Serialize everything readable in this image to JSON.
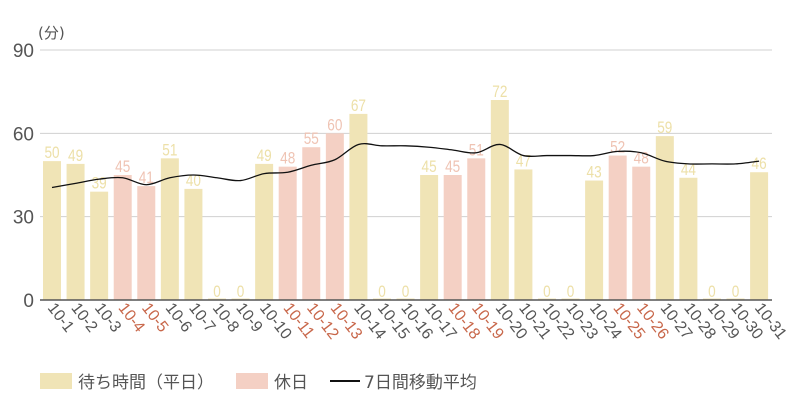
{
  "chart_data": {
    "type": "bar",
    "title": "",
    "ylabel": "(分)",
    "xlabel": "",
    "ylim": [
      0,
      90
    ],
    "yticks": [
      0,
      30,
      60,
      90
    ],
    "grid": true,
    "legend_position": "bottom",
    "categories": [
      "10-1",
      "10-2",
      "10-3",
      "10-4",
      "10-5",
      "10-6",
      "10-7",
      "10-8",
      "10-9",
      "10-10",
      "10-11",
      "10-12",
      "10-13",
      "10-14",
      "10-15",
      "10-16",
      "10-17",
      "10-18",
      "10-19",
      "10-20",
      "10-21",
      "10-22",
      "10-23",
      "10-24",
      "10-25",
      "10-26",
      "10-27",
      "10-28",
      "10-29",
      "10-30",
      "10-31"
    ],
    "holidays": [
      "10-4",
      "10-5",
      "10-11",
      "10-12",
      "10-13",
      "10-18",
      "10-19",
      "10-25",
      "10-26"
    ],
    "values": [
      50,
      49,
      39,
      45,
      41,
      51,
      40,
      0,
      0,
      49,
      48,
      55,
      60,
      67,
      0,
      0,
      45,
      45,
      51,
      72,
      47,
      0,
      0,
      43,
      52,
      48,
      59,
      44,
      0,
      0,
      46
    ],
    "series": [
      {
        "name": "待ち時間（平日）",
        "type": "bar",
        "color": "#f0e4b6"
      },
      {
        "name": "休日",
        "type": "bar",
        "color": "#f4d0c4"
      },
      {
        "name": "7日間移動平均",
        "type": "line",
        "color": "#111111",
        "values": [
          40.5,
          42,
          43.5,
          44,
          41.5,
          44,
          45,
          44,
          43,
          45.5,
          46,
          48.5,
          50.5,
          56,
          55.5,
          55.5,
          55,
          54,
          53,
          56,
          52,
          52,
          52,
          52,
          53.5,
          53,
          50,
          49,
          49,
          49,
          50
        ]
      }
    ]
  },
  "colors": {
    "weekday_bar": "#f0e4b6",
    "weekday_label": "#ede0a8",
    "holiday_bar": "#f4d0c4",
    "holiday_label": "#efc3b3",
    "holiday_tick": "#c8674a",
    "tick": "#555555",
    "grid": "#d0d0d0",
    "axis": "#555555",
    "line": "#111111"
  },
  "legend": {
    "weekday": "待ち時間（平日）",
    "holiday": "休日",
    "average": "7日間移動平均"
  }
}
